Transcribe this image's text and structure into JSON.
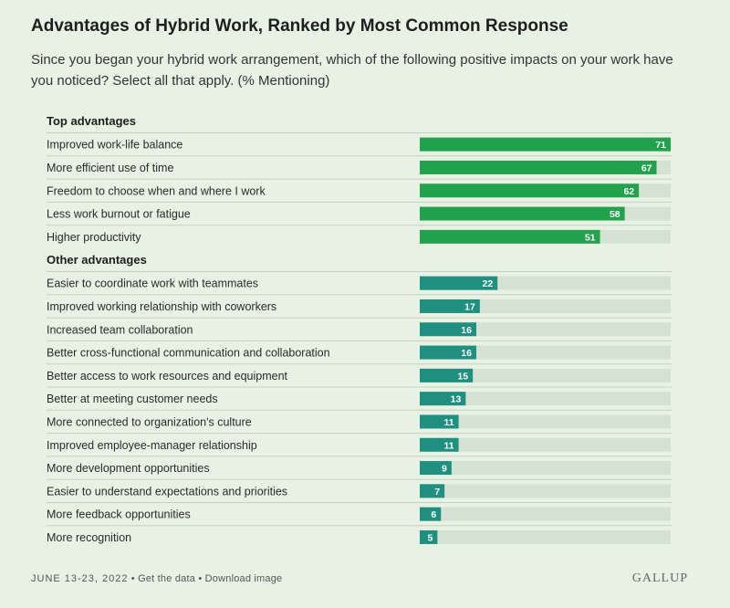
{
  "header": {
    "title": "Advantages of Hybrid Work, Ranked by Most Common Response",
    "subtitle": "Since you began your hybrid work arrangement, which of the following positive impacts on your work have you noticed? Select all that apply. (% Mentioning)"
  },
  "colors": {
    "top_bar": "#22a24c",
    "other_bar": "#1f9080",
    "track": "#d5e2d2",
    "background": "#e8f2e4",
    "divider": "#c3d2c0"
  },
  "chart_data": {
    "type": "bar",
    "orientation": "horizontal",
    "xlim": [
      0,
      71
    ],
    "groups": [
      {
        "name": "Top advantages",
        "categories": [
          "Improved work-life balance",
          "More efficient use of time",
          "Freedom to choose when and where I work",
          "Less work burnout or fatigue",
          "Higher productivity"
        ],
        "values": [
          71,
          67,
          62,
          58,
          51
        ]
      },
      {
        "name": "Other advantages",
        "categories": [
          "Easier to coordinate work with teammates",
          "Improved working relationship with coworkers",
          "Increased team collaboration",
          "Better cross-functional communication and collaboration",
          "Better access to work resources and equipment",
          "Better at meeting customer needs",
          "More connected to organization's culture",
          "Improved employee-manager relationship",
          "More development opportunities",
          "Easier to understand expectations and priorities",
          "More feedback opportunities",
          "More recognition"
        ],
        "values": [
          22,
          17,
          16,
          16,
          15,
          13,
          11,
          11,
          9,
          7,
          6,
          5
        ]
      }
    ]
  },
  "footer": {
    "date": "JUNE 13-23, 2022",
    "separator": "•",
    "get_data": "Get the data",
    "download": "Download image",
    "logo": "GALLUP"
  }
}
